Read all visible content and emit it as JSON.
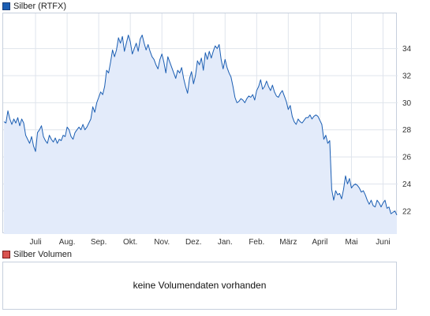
{
  "legend": {
    "price_label": "Silber (RTFX)",
    "volume_label": "Silber Volumen",
    "price_color": "#1b5eb3",
    "volume_color": "#d9534f"
  },
  "volume_panel": {
    "message": "keine Volumendaten vorhanden"
  },
  "chart_data": {
    "type": "area",
    "series": [
      {
        "name": "Silber (RTFX)",
        "color": "#1b5eb3",
        "fill": "#e3ebfa",
        "values": [
          28.6,
          28.5,
          29.4,
          28.8,
          28.4,
          28.8,
          28.5,
          28.9,
          28.3,
          28.8,
          28.5,
          27.6,
          27.3,
          27.0,
          27.5,
          26.8,
          26.4,
          27.8,
          28.0,
          28.3,
          27.5,
          27.2,
          27.0,
          27.6,
          27.3,
          27.1,
          27.4,
          27.0,
          27.3,
          27.2,
          27.6,
          27.5,
          28.2,
          28.0,
          27.5,
          27.3,
          27.8,
          28.0,
          28.2,
          28.0,
          28.4,
          28.0,
          28.2,
          28.5,
          28.8,
          29.7,
          29.3,
          30.0,
          30.4,
          30.8,
          30.6,
          31.2,
          32.4,
          32.2,
          33.0,
          33.9,
          33.4,
          33.9,
          34.8,
          34.4,
          34.9,
          33.8,
          34.4,
          35.0,
          34.5,
          33.6,
          34.0,
          34.4,
          33.8,
          34.7,
          35.0,
          34.4,
          33.9,
          34.3,
          33.8,
          33.4,
          33.2,
          32.8,
          32.5,
          33.2,
          33.6,
          33.0,
          32.2,
          33.4,
          33.0,
          32.6,
          32.2,
          31.8,
          32.4,
          32.2,
          32.6,
          31.8,
          31.2,
          30.7,
          31.8,
          32.3,
          31.4,
          32.0,
          33.1,
          32.8,
          33.3,
          32.4,
          33.7,
          33.2,
          33.8,
          33.3,
          33.8,
          34.2,
          34.0,
          34.3,
          33.2,
          32.5,
          33.2,
          32.6,
          32.2,
          31.9,
          31.2,
          30.4,
          30.0,
          30.1,
          30.3,
          30.2,
          30.0,
          30.3,
          30.5,
          30.4,
          30.6,
          30.2,
          30.9,
          31.2,
          31.7,
          31.0,
          31.2,
          31.6,
          31.2,
          30.9,
          31.3,
          30.8,
          30.5,
          30.4,
          30.7,
          30.9,
          30.5,
          30.1,
          29.5,
          29.8,
          29.0,
          28.6,
          28.4,
          28.8,
          28.6,
          28.5,
          28.7,
          28.9,
          28.9,
          29.1,
          28.8,
          29.0,
          29.1,
          29.0,
          28.7,
          28.4,
          27.3,
          27.6,
          27.0,
          27.2,
          23.6,
          22.8,
          23.5,
          23.2,
          23.3,
          22.9,
          23.6,
          24.6,
          24.0,
          24.4,
          23.7,
          23.9,
          24.0,
          23.9,
          23.7,
          23.4,
          23.5,
          23.2,
          22.8,
          22.5,
          22.8,
          22.4,
          22.3,
          22.8,
          22.6,
          22.3,
          22.6,
          22.8,
          22.2,
          22.3,
          21.8,
          21.9,
          22.0,
          21.7
        ],
        "area_floor": 20.3
      }
    ],
    "x_tick_labels": [
      "Juli",
      "Aug.",
      "Sep.",
      "Okt.",
      "Nov.",
      "Dez.",
      "Jan.",
      "Feb.",
      "März",
      "April",
      "Mai",
      "Juni"
    ],
    "x_tick_index": [
      16,
      32,
      48,
      64,
      80,
      96,
      112,
      128,
      144,
      160,
      176,
      192
    ],
    "y_ticks": [
      22,
      24,
      26,
      28,
      30,
      32,
      34
    ],
    "ylim": [
      20.3,
      36.6
    ],
    "grid": true,
    "legend_position": "top-left",
    "y_axis_side": "right"
  }
}
